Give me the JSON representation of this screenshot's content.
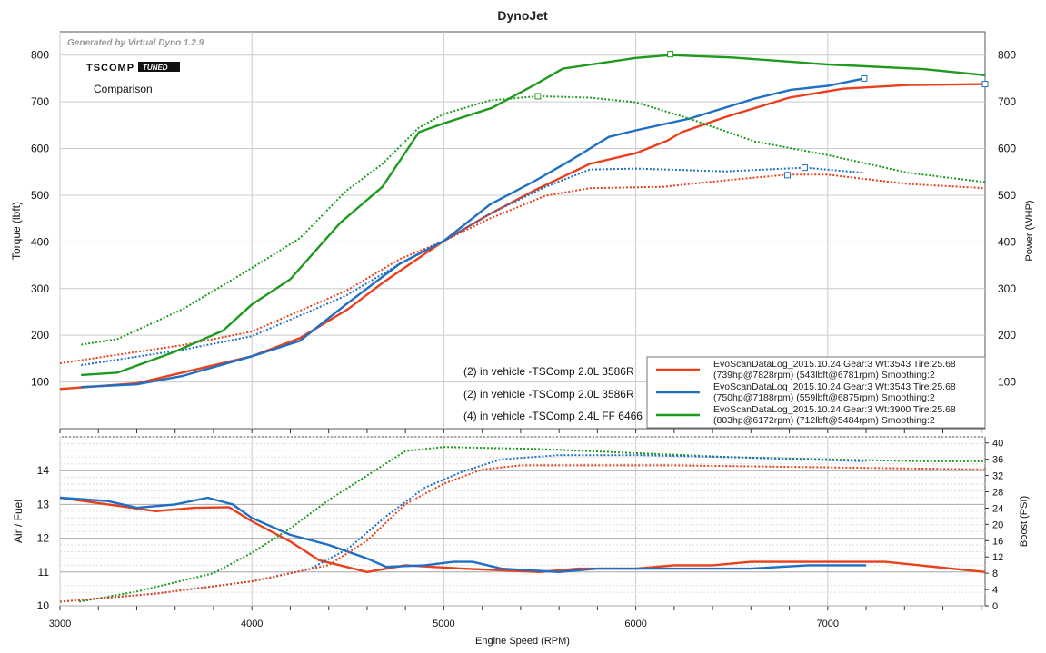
{
  "chart_data": [
    {
      "type": "line",
      "title": "DynoJet",
      "watermark": "Generated by Virtual Dyno 1.2.9",
      "logo": "TSCOMP TUNED",
      "subtitle": "Comparison",
      "ylabel": "Torque (lbft)",
      "y2label": "Power (WHP)",
      "xlim": [
        3000,
        7820
      ],
      "ylim": [
        0,
        850
      ],
      "yticks": [
        100,
        200,
        300,
        400,
        500,
        600,
        700,
        800
      ],
      "run_labels": [
        "(2) in vehicle -TSComp 2.0L 3586R",
        "(2) in vehicle -TSComp 2.0L 3586R",
        "(4) in vehicle -TSComp 2.4L FF 6466"
      ],
      "legend": [
        {
          "line1": "EvoScanDataLog_2015.10.24 Gear:3 Wt:3543 Tire:25.68",
          "line2": "(739hp@7828rpm) (543lbft@6781rpm) Smoothing:2",
          "color": "#e8401c"
        },
        {
          "line1": "EvoScanDataLog_2015.10.24 Gear:3 Wt:3543 Tire:25.68",
          "line2": "(750hp@7188rpm) (559lbft@6875rpm) Smoothing:2",
          "color": "#1f6fc4"
        },
        {
          "line1": "EvoScanDataLog_2015.10.24 Gear:3 Wt:3900 Tire:25.68",
          "line2": "(803hp@6172rpm) (712lbft@5484rpm) Smoothing:2",
          "color": "#1f9a1f"
        }
      ],
      "series": [
        {
          "name": "red power",
          "color": "#e8401c",
          "style": "solid",
          "marker": [
            7820,
            738
          ],
          "points": [
            [
              3000,
              85
            ],
            [
              3400,
              97
            ],
            [
              4000,
              155
            ],
            [
              4250,
              194
            ],
            [
              4500,
              256
            ],
            [
              4690,
              315
            ],
            [
              5000,
              402
            ],
            [
              5240,
              460
            ],
            [
              5480,
              512
            ],
            [
              5760,
              567
            ],
            [
              6000,
              590
            ],
            [
              6160,
              616
            ],
            [
              6240,
              635
            ],
            [
              6470,
              668
            ],
            [
              6800,
              709
            ],
            [
              7080,
              728
            ],
            [
              7420,
              736
            ],
            [
              7820,
              738
            ]
          ]
        },
        {
          "name": "red torque",
          "color": "#e8401c",
          "style": "dotted",
          "marker": [
            6790,
            543
          ],
          "points": [
            [
              3000,
              140
            ],
            [
              3640,
              179
            ],
            [
              4000,
              208
            ],
            [
              4490,
              295
            ],
            [
              4770,
              363
            ],
            [
              5000,
              402
            ],
            [
              5240,
              450
            ],
            [
              5530,
              499
            ],
            [
              5760,
              515
            ],
            [
              6140,
              518
            ],
            [
              6470,
              532
            ],
            [
              6790,
              544
            ],
            [
              7000,
              544
            ],
            [
              7420,
              524
            ],
            [
              7820,
              515
            ]
          ]
        },
        {
          "name": "blue power",
          "color": "#1f6fc4",
          "style": "solid",
          "marker": [
            7190,
            750
          ],
          "points": [
            [
              3110,
              89
            ],
            [
              3400,
              95
            ],
            [
              3640,
              113
            ],
            [
              4000,
              155
            ],
            [
              4250,
              188
            ],
            [
              4490,
              266
            ],
            [
              4770,
              353
            ],
            [
              5000,
              402
            ],
            [
              5240,
              480
            ],
            [
              5480,
              532
            ],
            [
              5670,
              577
            ],
            [
              5860,
              625
            ],
            [
              6000,
              639
            ],
            [
              6280,
              664
            ],
            [
              6620,
              707
            ],
            [
              6810,
              726
            ],
            [
              7000,
              734
            ],
            [
              7190,
              750
            ]
          ]
        },
        {
          "name": "blue torque",
          "color": "#1f6fc4",
          "style": "dotted",
          "marker": [
            6880,
            559
          ],
          "points": [
            [
              3110,
              136
            ],
            [
              3640,
              169
            ],
            [
              4000,
              198
            ],
            [
              4490,
              285
            ],
            [
              4770,
              353
            ],
            [
              5000,
              402
            ],
            [
              5240,
              460
            ],
            [
              5530,
              518
            ],
            [
              5760,
              555
            ],
            [
              6000,
              557
            ],
            [
              6470,
              551
            ],
            [
              6880,
              559
            ],
            [
              7190,
              548
            ]
          ]
        },
        {
          "name": "green power",
          "color": "#1f9a1f",
          "style": "solid",
          "marker": [
            6180,
            802
          ],
          "points": [
            [
              3110,
              115
            ],
            [
              3300,
              120
            ],
            [
              3600,
              165
            ],
            [
              3850,
              210
            ],
            [
              4000,
              266
            ],
            [
              4200,
              320
            ],
            [
              4460,
              441
            ],
            [
              4680,
              518
            ],
            [
              4870,
              635
            ],
            [
              5000,
              654
            ],
            [
              5250,
              687
            ],
            [
              5480,
              738
            ],
            [
              5620,
              771
            ],
            [
              6000,
              794
            ],
            [
              6180,
              800
            ],
            [
              6500,
              795
            ],
            [
              7000,
              780
            ],
            [
              7500,
              770
            ],
            [
              7820,
              757
            ]
          ]
        },
        {
          "name": "green torque",
          "color": "#1f9a1f",
          "style": "dotted",
          "marker": [
            5490,
            712
          ],
          "points": [
            [
              3110,
              180
            ],
            [
              3300,
              192
            ],
            [
              3640,
              256
            ],
            [
              4000,
              344
            ],
            [
              4250,
              408
            ],
            [
              4490,
              509
            ],
            [
              4680,
              567
            ],
            [
              4870,
              645
            ],
            [
              5000,
              674
            ],
            [
              5240,
              703
            ],
            [
              5490,
              712
            ],
            [
              5760,
              709
            ],
            [
              6000,
              699
            ],
            [
              6280,
              664
            ],
            [
              6620,
              615
            ],
            [
              7000,
              586
            ],
            [
              7420,
              548
            ],
            [
              7820,
              528
            ]
          ]
        }
      ]
    },
    {
      "type": "line",
      "xlabel": "Engine Speed (RPM)",
      "ylabel": "Air / Fuel",
      "y2label": "Boost (PSI)",
      "xlim": [
        3000,
        7820
      ],
      "xticks": [
        3000,
        4000,
        5000,
        6000,
        7000
      ],
      "ylim": [
        10,
        15
      ],
      "yticks": [
        10,
        11,
        12,
        13,
        14
      ],
      "y2lim": [
        0,
        41.5
      ],
      "y2ticks": [
        0,
        4,
        8,
        12,
        16,
        20,
        24,
        28,
        32,
        36,
        40
      ],
      "series": [
        {
          "name": "red afr",
          "axis": "afr",
          "color": "#e8401c",
          "style": "solid",
          "points": [
            [
              3000,
              13.2
            ],
            [
              3250,
              13.0
            ],
            [
              3500,
              12.8
            ],
            [
              3700,
              12.9
            ],
            [
              3880,
              12.92
            ],
            [
              4000,
              12.5
            ],
            [
              4200,
              11.9
            ],
            [
              4350,
              11.35
            ],
            [
              4600,
              11.0
            ],
            [
              4800,
              11.2
            ],
            [
              5100,
              11.1
            ],
            [
              5500,
              11.0
            ],
            [
              5700,
              11.1
            ],
            [
              6000,
              11.1
            ],
            [
              6200,
              11.2
            ],
            [
              6400,
              11.2
            ],
            [
              6600,
              11.3
            ],
            [
              7300,
              11.3
            ],
            [
              7820,
              11.0
            ]
          ]
        },
        {
          "name": "blue afr",
          "axis": "afr",
          "color": "#1f6fc4",
          "style": "solid",
          "points": [
            [
              3000,
              13.2
            ],
            [
              3250,
              13.1
            ],
            [
              3400,
              12.9
            ],
            [
              3600,
              13.0
            ],
            [
              3770,
              13.2
            ],
            [
              3900,
              13.0
            ],
            [
              4000,
              12.6
            ],
            [
              4200,
              12.1
            ],
            [
              4400,
              11.8
            ],
            [
              4600,
              11.4
            ],
            [
              4700,
              11.15
            ],
            [
              4900,
              11.2
            ],
            [
              5050,
              11.3
            ],
            [
              5150,
              11.3
            ],
            [
              5300,
              11.1
            ],
            [
              5600,
              11.0
            ],
            [
              5800,
              11.1
            ],
            [
              6000,
              11.1
            ],
            [
              6600,
              11.1
            ],
            [
              6900,
              11.2
            ],
            [
              7200,
              11.2
            ]
          ]
        },
        {
          "name": "green boost",
          "axis": "boost",
          "color": "#1f9a1f",
          "style": "dotted",
          "points": [
            [
              3100,
              1
            ],
            [
              3400,
              3.5
            ],
            [
              3800,
              8
            ],
            [
              4000,
              13
            ],
            [
              4200,
              19
            ],
            [
              4400,
              26
            ],
            [
              4600,
              32
            ],
            [
              4800,
              38
            ],
            [
              5000,
              39
            ],
            [
              5500,
              38.5
            ],
            [
              6000,
              37.5
            ],
            [
              6500,
              36.5
            ],
            [
              7000,
              36
            ],
            [
              7500,
              35.5
            ],
            [
              7820,
              35.5
            ]
          ]
        },
        {
          "name": "blue boost",
          "axis": "boost",
          "color": "#1f6fc4",
          "style": "dotted",
          "points": [
            [
              3000,
              1
            ],
            [
              3500,
              3
            ],
            [
              4000,
              6
            ],
            [
              4300,
              9
            ],
            [
              4500,
              14
            ],
            [
              4700,
              22
            ],
            [
              4900,
              29
            ],
            [
              5100,
              33
            ],
            [
              5300,
              36
            ],
            [
              5600,
              37
            ],
            [
              6000,
              37
            ],
            [
              6500,
              36.5
            ],
            [
              7200,
              35.5
            ]
          ]
        },
        {
          "name": "red boost",
          "axis": "boost",
          "color": "#e8401c",
          "style": "dotted",
          "points": [
            [
              3000,
              1
            ],
            [
              3500,
              3
            ],
            [
              4000,
              6
            ],
            [
              4400,
              10
            ],
            [
              4600,
              16
            ],
            [
              4800,
              25
            ],
            [
              5000,
              30
            ],
            [
              5200,
              33.5
            ],
            [
              5400,
              34.5
            ],
            [
              6000,
              34.5
            ],
            [
              6200,
              34.5
            ],
            [
              7000,
              34
            ],
            [
              7820,
              33.5
            ]
          ]
        }
      ]
    }
  ]
}
